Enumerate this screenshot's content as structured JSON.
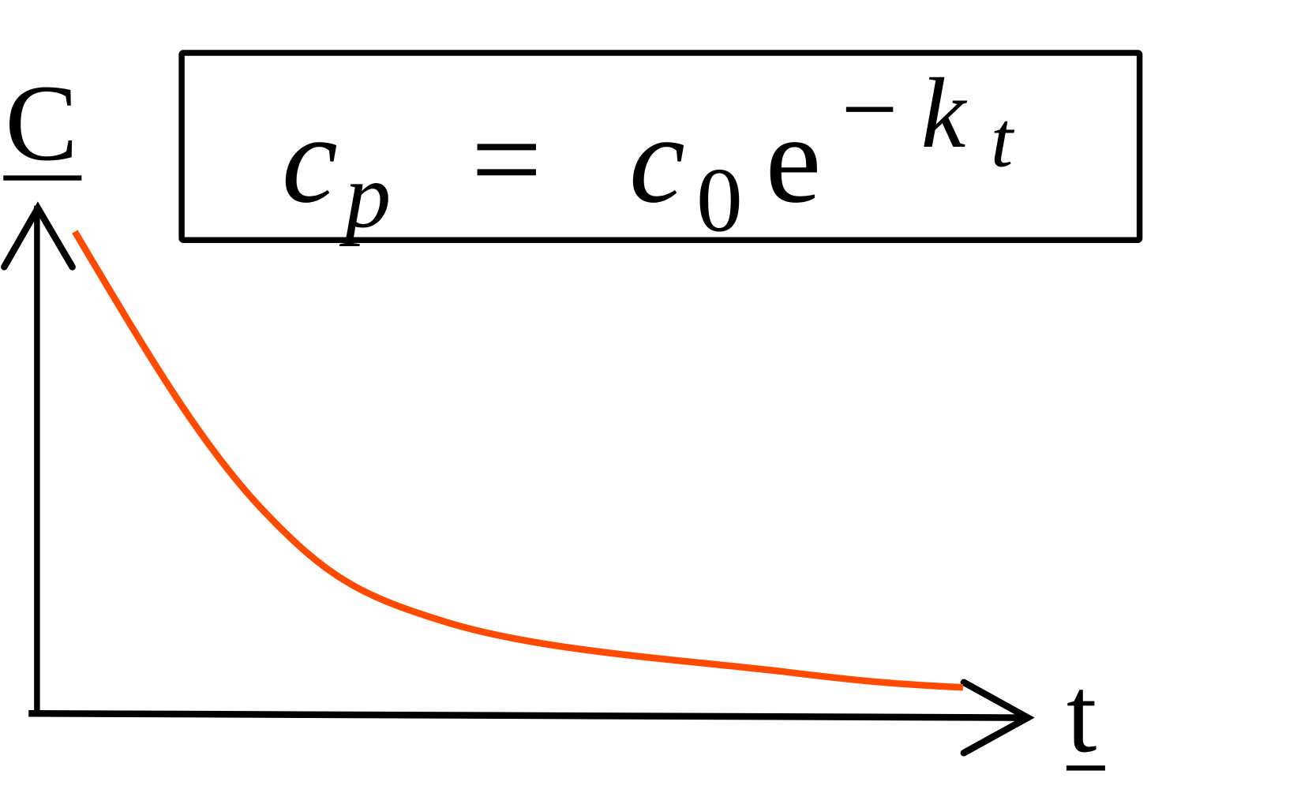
{
  "axes": {
    "y_label": "C",
    "x_label": "t"
  },
  "equation": {
    "lhs_base": "c",
    "lhs_sub": "p",
    "equals": "=",
    "rhs_base": "c",
    "rhs_sub": "0",
    "exp_base": "e",
    "exp_sign": "−",
    "exp_k": "k",
    "exp_t": "t"
  },
  "colors": {
    "curve": "#ff4a00",
    "axes": "#000000"
  }
}
